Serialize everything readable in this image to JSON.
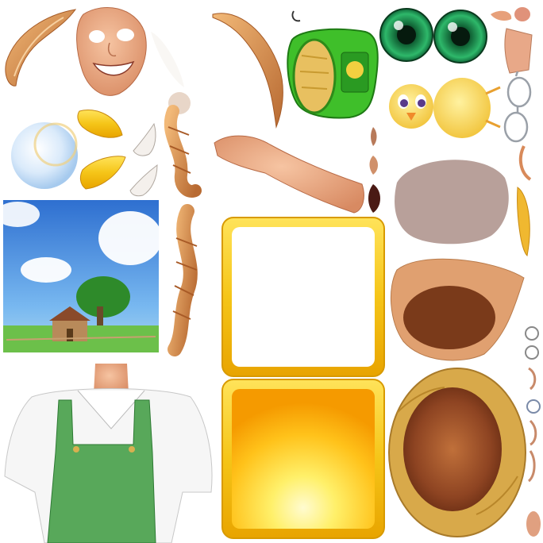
{
  "atlas": {
    "description_free": true,
    "sprites": [
      {
        "id": "hair-lock-top-left",
        "icon": "hair-lock-icon"
      },
      {
        "id": "smiling-face",
        "icon": "face-icon"
      },
      {
        "id": "white-feather-faint",
        "icon": "feather-icon"
      },
      {
        "id": "arm-hair-strand",
        "icon": "hair-strand-icon"
      },
      {
        "id": "popcorn-sack",
        "icon": "sack-icon"
      },
      {
        "id": "green-eye-left",
        "icon": "eye-icon"
      },
      {
        "id": "green-eye-right",
        "icon": "eye-icon"
      },
      {
        "id": "nose-pieces",
        "icon": "nose-icon"
      },
      {
        "id": "yellow-chick",
        "icon": "chick-icon"
      },
      {
        "id": "glasses",
        "icon": "glasses-icon"
      },
      {
        "id": "bubble-orb",
        "icon": "bubble-icon"
      },
      {
        "id": "golden-wings",
        "icon": "wing-icon"
      },
      {
        "id": "white-wings",
        "icon": "wing-icon"
      },
      {
        "id": "braid-top",
        "icon": "braid-icon"
      },
      {
        "id": "arm",
        "icon": "arm-icon"
      },
      {
        "id": "ears",
        "icon": "ear-icon"
      },
      {
        "id": "head-cap-shape",
        "icon": "cap-icon"
      },
      {
        "id": "farm-landscape",
        "icon": "landscape-icon"
      },
      {
        "id": "braid-bottom",
        "icon": "braid-icon"
      },
      {
        "id": "white-frame-panel",
        "icon": "frame-icon"
      },
      {
        "id": "yellow-glow-panel",
        "icon": "panel-icon"
      },
      {
        "id": "hat-underside",
        "icon": "hat-icon"
      },
      {
        "id": "farmer-torso-overalls",
        "icon": "torso-icon"
      },
      {
        "id": "straw-hat-top",
        "icon": "straw-hat-icon"
      },
      {
        "id": "small-parts-column",
        "icon": "parts-icon"
      }
    ]
  },
  "colors": {
    "skin": "#E7A07A",
    "hair": "#D48A4E",
    "eye_green": "#1FA05A",
    "sack_green": "#3FBF2A",
    "gold": "#F5C518",
    "sky": "#3A8FE0",
    "grass": "#4CAF50",
    "overall_green": "#58A85A",
    "straw": "#D8A94A",
    "hat_inner": "#A85A2A",
    "cap_gray": "#B8A09A"
  }
}
